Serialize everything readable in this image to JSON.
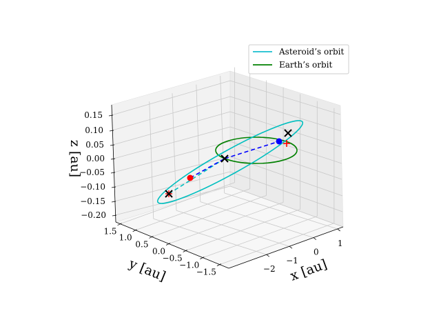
{
  "chart_data": {
    "type": "3d-line",
    "axes": {
      "x": {
        "label": "x [au]",
        "ticks": [
          "−2",
          "−1",
          "0",
          "1"
        ]
      },
      "y": {
        "label": "y [au]",
        "ticks": [
          "1.5",
          "1.0",
          "0.5",
          "0.0",
          "−0.5",
          "−1.0",
          "−1.5"
        ]
      },
      "z": {
        "label": "z [au]",
        "ticks": [
          "0.15",
          "0.10",
          "0.05",
          "0.00",
          "−0.05",
          "−0.10",
          "−0.15",
          "−0.20"
        ]
      }
    },
    "legend": {
      "placement": "top-right",
      "entries": [
        {
          "label": "Asteroid’s orbit",
          "color": "#17becf"
        },
        {
          "label": "Earth’s orbit",
          "color": "#008000"
        }
      ]
    },
    "series": [
      {
        "name": "Asteroid’s orbit",
        "color": "#00bfbf",
        "shape": "ellipse"
      },
      {
        "name": "Earth’s orbit",
        "color": "#008000",
        "shape": "ellipse"
      }
    ],
    "markers": {
      "black_x": "#000000",
      "red_dot": "#ff0000",
      "blue_dot": "#0000ff",
      "red_plus": "#ff0000"
    },
    "connectors": {
      "blue_dashed": "#0000ff",
      "cyan_dashed": "#00bfbf"
    },
    "grid": true
  }
}
